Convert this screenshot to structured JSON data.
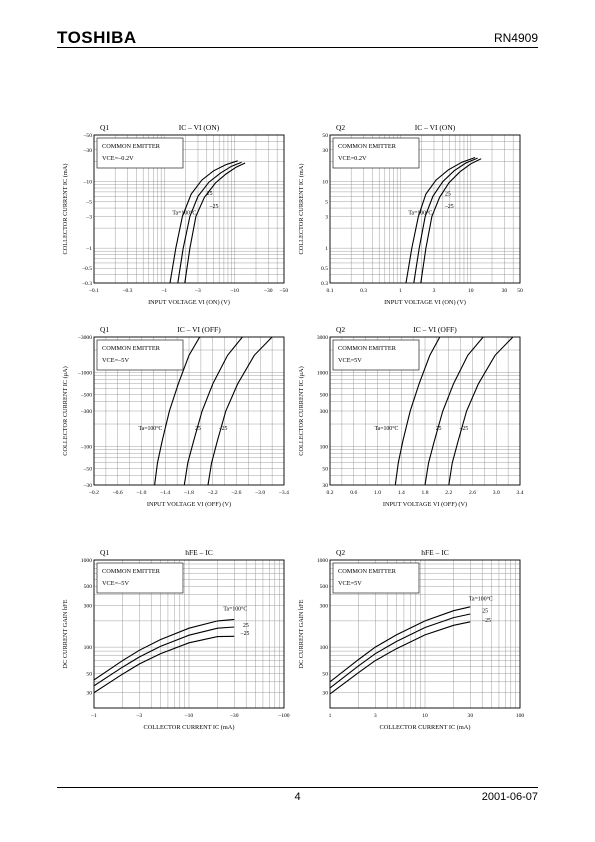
{
  "header": {
    "brand": "TOSHIBA",
    "part_number": "RN4909"
  },
  "footer": {
    "page": "4",
    "date": "2001-06-07"
  },
  "chart_data": [
    {
      "id": "q1_vion",
      "type": "line",
      "tag": "Q1",
      "title": "IC – VI (ON)",
      "box_lines": [
        "COMMON EMITTER",
        "VCE=–0.2V"
      ],
      "xlabel": "INPUT VOLTAGE  VI (ON)  (V)",
      "ylabel": "COLLECTOR CURRENT  IC  (mA)",
      "xscale": "log",
      "yscale": "log",
      "xlim": [
        0.1,
        50
      ],
      "ylim": [
        0.3,
        50
      ],
      "xticks": [
        {
          "v": 0.1,
          "t": "–0.1"
        },
        {
          "v": 0.3,
          "t": "–0.3"
        },
        {
          "v": 1,
          "t": "–1"
        },
        {
          "v": 3,
          "t": "–3"
        },
        {
          "v": 10,
          "t": "–10"
        },
        {
          "v": 30,
          "t": "–30"
        },
        {
          "v": 50,
          "t": "–50"
        }
      ],
      "yticks": [
        {
          "v": 0.3,
          "t": "–0.3"
        },
        {
          "v": 0.5,
          "t": "–0.5"
        },
        {
          "v": 1,
          "t": "–1"
        },
        {
          "v": 3,
          "t": "–3"
        },
        {
          "v": 5,
          "t": "–5"
        },
        {
          "v": 10,
          "t": "–10"
        },
        {
          "v": 30,
          "t": "–30"
        },
        {
          "v": 50,
          "t": "–50"
        }
      ],
      "series": [
        {
          "name": "Ta=100°C",
          "x": [
            1.2,
            1.45,
            1.8,
            2.4,
            3.4,
            5.0,
            7.5,
            11.0
          ],
          "y": [
            0.3,
            1.0,
            3.0,
            6.5,
            10.5,
            14.5,
            18.0,
            20.5
          ]
        },
        {
          "name": "25",
          "x": [
            1.55,
            1.85,
            2.3,
            3.0,
            4.3,
            6.3,
            9.0,
            12.5
          ],
          "y": [
            0.3,
            1.0,
            3.0,
            6.0,
            9.8,
            13.5,
            17.0,
            19.5
          ]
        },
        {
          "name": "–25",
          "x": [
            1.95,
            2.3,
            2.8,
            3.7,
            5.3,
            7.5,
            10.5,
            14.0
          ],
          "y": [
            0.3,
            1.0,
            3.0,
            5.8,
            9.5,
            13.0,
            16.5,
            19.0
          ]
        }
      ],
      "labels": [
        {
          "text": "25",
          "x": 4.0,
          "y": 6.3
        },
        {
          "text": "–25",
          "x": 4.4,
          "y": 4.0
        },
        {
          "text": "Ta=100°C",
          "x": 1.3,
          "y": 3.2
        }
      ]
    },
    {
      "id": "q2_vion",
      "type": "line",
      "tag": "Q2",
      "title": "IC – VI (ON)",
      "box_lines": [
        "COMMON EMITTER",
        "VCE=0.2V"
      ],
      "xlabel": "INPUT VOLTAGE  VI (ON)  (V)",
      "ylabel": "COLLECTOR CURRENT  IC  (mA)",
      "xscale": "log",
      "yscale": "log",
      "xlim": [
        0.1,
        50
      ],
      "ylim": [
        0.3,
        50
      ],
      "xticks": [
        {
          "v": 0.1,
          "t": "0.1"
        },
        {
          "v": 0.3,
          "t": "0.3"
        },
        {
          "v": 1,
          "t": "1"
        },
        {
          "v": 3,
          "t": "3"
        },
        {
          "v": 10,
          "t": "10"
        },
        {
          "v": 30,
          "t": "30"
        },
        {
          "v": 50,
          "t": "50"
        }
      ],
      "yticks": [
        {
          "v": 0.3,
          "t": "0.3"
        },
        {
          "v": 0.5,
          "t": "0.5"
        },
        {
          "v": 1,
          "t": "1"
        },
        {
          "v": 3,
          "t": "3"
        },
        {
          "v": 5,
          "t": "5"
        },
        {
          "v": 10,
          "t": "10"
        },
        {
          "v": 30,
          "t": "30"
        },
        {
          "v": 50,
          "t": "50"
        }
      ],
      "series": [
        {
          "name": "Ta=100°C",
          "x": [
            1.2,
            1.45,
            1.8,
            2.3,
            3.2,
            4.8,
            7.5,
            11.5
          ],
          "y": [
            0.3,
            1.0,
            3.0,
            6.5,
            10.5,
            15.0,
            19.5,
            23.0
          ]
        },
        {
          "name": "25",
          "x": [
            1.55,
            1.85,
            2.25,
            2.9,
            4.0,
            5.8,
            8.5,
            12.5
          ],
          "y": [
            0.3,
            1.0,
            3.0,
            6.0,
            10.0,
            14.5,
            19.0,
            22.5
          ]
        },
        {
          "name": "–25",
          "x": [
            1.95,
            2.3,
            2.8,
            3.6,
            4.9,
            7.0,
            10.0,
            14.0
          ],
          "y": [
            0.3,
            1.0,
            3.0,
            5.8,
            9.6,
            14.0,
            18.5,
            22.0
          ]
        }
      ],
      "labels": [
        {
          "text": "25",
          "x": 4.3,
          "y": 6.2
        },
        {
          "text": "–25",
          "x": 4.3,
          "y": 4.0
        },
        {
          "text": "Ta=100°C",
          "x": 1.3,
          "y": 3.2
        }
      ]
    },
    {
      "id": "q1_vioff",
      "type": "line",
      "tag": "Q1",
      "title": "IC – VI (OFF)",
      "box_lines": [
        "COMMON EMITTER",
        "VCE=–5V"
      ],
      "xlabel": "INPUT VOLTAGE  VI (OFF)  (V)",
      "ylabel": "COLLECTOR CURRENT  IC  (μA)",
      "xscale": "linear",
      "yscale": "log",
      "xlim": [
        0.2,
        3.4
      ],
      "ylim": [
        30,
        3000
      ],
      "xticks": [
        {
          "v": 0.2,
          "t": "–0.2"
        },
        {
          "v": 0.6,
          "t": "–0.6"
        },
        {
          "v": 1.0,
          "t": "–1.0"
        },
        {
          "v": 1.4,
          "t": "–1.4"
        },
        {
          "v": 1.8,
          "t": "–1.8"
        },
        {
          "v": 2.2,
          "t": "–2.2"
        },
        {
          "v": 2.6,
          "t": "–2.6"
        },
        {
          "v": 3.0,
          "t": "–3.0"
        },
        {
          "v": 3.4,
          "t": "–3.4"
        }
      ],
      "yticks": [
        {
          "v": 30,
          "t": "–30"
        },
        {
          "v": 50,
          "t": "–50"
        },
        {
          "v": 100,
          "t": "–100"
        },
        {
          "v": 300,
          "t": "–300"
        },
        {
          "v": 500,
          "t": "–500"
        },
        {
          "v": 1000,
          "t": "–1000"
        },
        {
          "v": 3000,
          "t": "–3000"
        }
      ],
      "series": [
        {
          "name": "Ta=100°C",
          "x": [
            1.22,
            1.27,
            1.35,
            1.47,
            1.62,
            1.8,
            1.98
          ],
          "y": [
            30,
            60,
            120,
            300,
            700,
            1700,
            3000
          ]
        },
        {
          "name": "25",
          "x": [
            1.72,
            1.78,
            1.88,
            2.02,
            2.2,
            2.45,
            2.7
          ],
          "y": [
            30,
            60,
            120,
            300,
            700,
            1700,
            3000
          ]
        },
        {
          "name": "–25",
          "x": [
            2.12,
            2.18,
            2.28,
            2.42,
            2.62,
            2.9,
            3.2
          ],
          "y": [
            30,
            60,
            120,
            300,
            700,
            1700,
            3000
          ]
        }
      ],
      "labels": [
        {
          "text": "Ta=100°C",
          "x": 0.95,
          "y": 165
        },
        {
          "text": "25",
          "x": 1.9,
          "y": 165
        },
        {
          "text": "–25",
          "x": 2.3,
          "y": 165
        }
      ]
    },
    {
      "id": "q2_vioff",
      "type": "line",
      "tag": "Q2",
      "title": "IC – VI (OFF)",
      "box_lines": [
        "COMMON EMITTER",
        "VCE=5V"
      ],
      "xlabel": "INPUT VOLTAGE  VI (OFF)  (V)",
      "ylabel": "COLLECTOR CURRENT  IC  (μA)",
      "xscale": "linear",
      "yscale": "log",
      "xlim": [
        0.2,
        3.4
      ],
      "ylim": [
        30,
        3000
      ],
      "xticks": [
        {
          "v": 0.2,
          "t": "0.2"
        },
        {
          "v": 0.6,
          "t": "0.6"
        },
        {
          "v": 1.0,
          "t": "1.0"
        },
        {
          "v": 1.4,
          "t": "1.4"
        },
        {
          "v": 1.8,
          "t": "1.8"
        },
        {
          "v": 2.2,
          "t": "2.2"
        },
        {
          "v": 2.6,
          "t": "2.6"
        },
        {
          "v": 3.0,
          "t": "3.0"
        },
        {
          "v": 3.4,
          "t": "3.4"
        }
      ],
      "yticks": [
        {
          "v": 30,
          "t": "30"
        },
        {
          "v": 50,
          "t": "50"
        },
        {
          "v": 100,
          "t": "100"
        },
        {
          "v": 300,
          "t": "300"
        },
        {
          "v": 500,
          "t": "500"
        },
        {
          "v": 1000,
          "t": "1000"
        },
        {
          "v": 3000,
          "t": "3000"
        }
      ],
      "series": [
        {
          "name": "Ta=100°C",
          "x": [
            1.3,
            1.35,
            1.43,
            1.55,
            1.7,
            1.88,
            2.05
          ],
          "y": [
            30,
            60,
            120,
            300,
            700,
            1700,
            3000
          ]
        },
        {
          "name": "25",
          "x": [
            1.8,
            1.86,
            1.96,
            2.1,
            2.28,
            2.52,
            2.78
          ],
          "y": [
            30,
            60,
            120,
            300,
            700,
            1700,
            3000
          ]
        },
        {
          "name": "–25",
          "x": [
            2.2,
            2.26,
            2.36,
            2.5,
            2.7,
            2.98,
            3.28
          ],
          "y": [
            30,
            60,
            120,
            300,
            700,
            1700,
            3000
          ]
        }
      ],
      "labels": [
        {
          "text": "Ta=100°C",
          "x": 0.95,
          "y": 165
        },
        {
          "text": "25",
          "x": 1.98,
          "y": 165
        },
        {
          "text": "–25",
          "x": 2.38,
          "y": 165
        }
      ]
    },
    {
      "id": "q1_hfe",
      "type": "line",
      "tag": "Q1",
      "title": "hFE – IC",
      "box_lines": [
        "COMMON EMITTER",
        "VCE=–5V"
      ],
      "xlabel": "COLLECTOR CURRENT  IC  (mA)",
      "ylabel": "DC CURRENT GAIN hFE",
      "xscale": "log",
      "yscale": "log",
      "xlim": [
        1,
        100
      ],
      "ylim": [
        20,
        1000
      ],
      "xticks": [
        {
          "v": 1,
          "t": "–1"
        },
        {
          "v": 3,
          "t": "–3"
        },
        {
          "v": 10,
          "t": "–10"
        },
        {
          "v": 30,
          "t": "–30"
        },
        {
          "v": 100,
          "t": "–100"
        }
      ],
      "yticks": [
        {
          "v": 30,
          "t": "30"
        },
        {
          "v": 50,
          "t": "50"
        },
        {
          "v": 100,
          "t": "100"
        },
        {
          "v": 300,
          "t": "300"
        },
        {
          "v": 500,
          "t": "500"
        },
        {
          "v": 1000,
          "t": "1000"
        }
      ],
      "series": [
        {
          "name": "Ta=100°C",
          "x": [
            1,
            2,
            3,
            5,
            10,
            20,
            30
          ],
          "y": [
            42,
            70,
            92,
            122,
            165,
            200,
            208
          ]
        },
        {
          "name": "25",
          "x": [
            1,
            2,
            3,
            5,
            10,
            20,
            30
          ],
          "y": [
            36,
            59,
            77,
            102,
            137,
            165,
            170
          ]
        },
        {
          "name": "–25",
          "x": [
            1,
            2,
            3,
            5,
            10,
            20,
            30
          ],
          "y": [
            30,
            49,
            64,
            84,
            112,
            132,
            133
          ]
        }
      ],
      "labels": [
        {
          "text": "Ta=100°C",
          "x": 23,
          "y": 262
        },
        {
          "text": "25",
          "x": 37,
          "y": 170
        },
        {
          "text": "–25",
          "x": 35,
          "y": 138
        }
      ]
    },
    {
      "id": "q2_hfe",
      "type": "line",
      "tag": "Q2",
      "title": "hFE – IC",
      "box_lines": [
        "COMMON EMITTER",
        "VCE=5V"
      ],
      "xlabel": "COLLECTOR CURRENT  IC  (mA)",
      "ylabel": "DC CURRENT GAIN hFE",
      "xscale": "log",
      "yscale": "log",
      "xlim": [
        1,
        100
      ],
      "ylim": [
        20,
        1000
      ],
      "xticks": [
        {
          "v": 1,
          "t": "1"
        },
        {
          "v": 3,
          "t": "3"
        },
        {
          "v": 10,
          "t": "10"
        },
        {
          "v": 30,
          "t": "30"
        },
        {
          "v": 100,
          "t": "100"
        }
      ],
      "yticks": [
        {
          "v": 30,
          "t": "30"
        },
        {
          "v": 50,
          "t": "50"
        },
        {
          "v": 100,
          "t": "100"
        },
        {
          "v": 300,
          "t": "300"
        },
        {
          "v": 500,
          "t": "500"
        },
        {
          "v": 1000,
          "t": "1000"
        }
      ],
      "series": [
        {
          "name": "Ta=100°C",
          "x": [
            1,
            2,
            3,
            5,
            10,
            20,
            30
          ],
          "y": [
            40,
            72,
            100,
            138,
            200,
            262,
            290
          ]
        },
        {
          "name": "25",
          "x": [
            1,
            2,
            3,
            5,
            10,
            20,
            30
          ],
          "y": [
            34,
            61,
            84,
            116,
            168,
            218,
            240
          ]
        },
        {
          "name": "–25",
          "x": [
            1,
            2,
            3,
            5,
            10,
            20,
            30
          ],
          "y": [
            29,
            51,
            70,
            96,
            138,
            178,
            195
          ]
        }
      ],
      "labels": [
        {
          "text": "Ta=100°C",
          "x": 29,
          "y": 345
        },
        {
          "text": "25",
          "x": 40,
          "y": 250
        },
        {
          "text": "–25",
          "x": 40,
          "y": 195
        }
      ]
    }
  ]
}
